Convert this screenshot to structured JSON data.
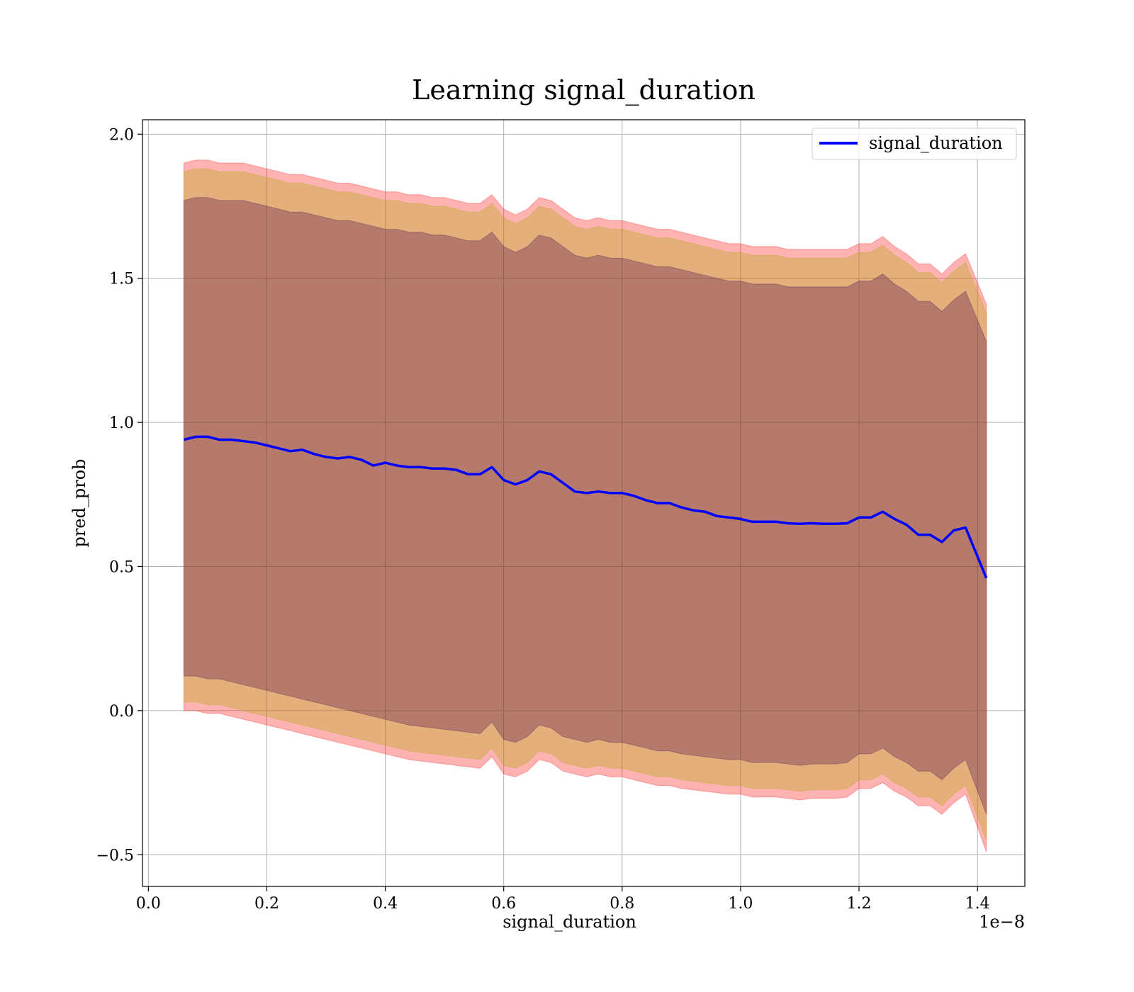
{
  "chart_data": {
    "type": "line",
    "title": "Learning signal_duration",
    "xlabel": "signal_duration",
    "ylabel": "pred_prob",
    "x_offset_label": "1e−8",
    "xlim": [
      -0.01,
      1.48
    ],
    "ylim": [
      -0.61,
      2.05
    ],
    "x_ticks": [
      0.0,
      0.2,
      0.4,
      0.6,
      0.8,
      1.0,
      1.2,
      1.4
    ],
    "x_tick_labels": [
      "0.0",
      "0.2",
      "0.4",
      "0.6",
      "0.8",
      "1.0",
      "1.2",
      "1.4"
    ],
    "y_ticks": [
      -0.5,
      0.0,
      0.5,
      1.0,
      1.5,
      2.0
    ],
    "y_tick_labels": [
      "−0.5",
      "0.0",
      "0.5",
      "1.0",
      "1.5",
      "2.0"
    ],
    "grid": true,
    "legend_position": "top-right",
    "x": [
      0.06,
      0.08,
      0.1,
      0.12,
      0.14,
      0.16,
      0.18,
      0.2,
      0.22,
      0.24,
      0.26,
      0.28,
      0.3,
      0.32,
      0.34,
      0.36,
      0.38,
      0.4,
      0.42,
      0.44,
      0.46,
      0.48,
      0.5,
      0.52,
      0.54,
      0.56,
      0.58,
      0.6,
      0.62,
      0.64,
      0.66,
      0.68,
      0.7,
      0.72,
      0.74,
      0.76,
      0.78,
      0.8,
      0.82,
      0.84,
      0.86,
      0.88,
      0.9,
      0.92,
      0.94,
      0.96,
      0.98,
      1.0,
      1.02,
      1.04,
      1.06,
      1.08,
      1.1,
      1.12,
      1.14,
      1.16,
      1.18,
      1.2,
      1.22,
      1.24,
      1.26,
      1.28,
      1.3,
      1.32,
      1.34,
      1.36,
      1.38,
      1.415
    ],
    "series": [
      {
        "name": "signal_duration",
        "color": "#0000ff",
        "values": [
          0.94,
          0.95,
          0.95,
          0.94,
          0.94,
          0.935,
          0.93,
          0.92,
          0.91,
          0.9,
          0.905,
          0.89,
          0.88,
          0.875,
          0.88,
          0.87,
          0.85,
          0.86,
          0.85,
          0.845,
          0.845,
          0.84,
          0.84,
          0.835,
          0.82,
          0.82,
          0.845,
          0.8,
          0.785,
          0.8,
          0.83,
          0.82,
          0.79,
          0.76,
          0.755,
          0.76,
          0.755,
          0.755,
          0.745,
          0.73,
          0.72,
          0.72,
          0.705,
          0.695,
          0.69,
          0.675,
          0.67,
          0.665,
          0.655,
          0.655,
          0.655,
          0.65,
          0.648,
          0.65,
          0.648,
          0.648,
          0.65,
          0.67,
          0.67,
          0.69,
          0.665,
          0.645,
          0.61,
          0.61,
          0.585,
          0.625,
          0.635,
          0.46
        ]
      }
    ],
    "bands": [
      {
        "color": "#ff0000",
        "opacity": 0.3,
        "lower": [
          0.0,
          0.0,
          -0.01,
          -0.01,
          -0.02,
          -0.03,
          -0.04,
          -0.05,
          -0.06,
          -0.07,
          -0.08,
          -0.09,
          -0.1,
          -0.11,
          -0.12,
          -0.13,
          -0.14,
          -0.15,
          -0.16,
          -0.17,
          -0.175,
          -0.18,
          -0.185,
          -0.19,
          -0.195,
          -0.2,
          -0.16,
          -0.22,
          -0.23,
          -0.21,
          -0.17,
          -0.18,
          -0.21,
          -0.22,
          -0.23,
          -0.22,
          -0.23,
          -0.23,
          -0.24,
          -0.25,
          -0.26,
          -0.26,
          -0.27,
          -0.275,
          -0.28,
          -0.285,
          -0.29,
          -0.29,
          -0.3,
          -0.3,
          -0.3,
          -0.305,
          -0.31,
          -0.305,
          -0.305,
          -0.305,
          -0.3,
          -0.27,
          -0.27,
          -0.25,
          -0.28,
          -0.3,
          -0.33,
          -0.33,
          -0.36,
          -0.32,
          -0.29,
          -0.49
        ],
        "upper": [
          1.9,
          1.91,
          1.91,
          1.9,
          1.9,
          1.9,
          1.89,
          1.88,
          1.87,
          1.86,
          1.86,
          1.85,
          1.84,
          1.83,
          1.83,
          1.82,
          1.81,
          1.8,
          1.8,
          1.79,
          1.79,
          1.78,
          1.78,
          1.77,
          1.76,
          1.76,
          1.79,
          1.74,
          1.72,
          1.74,
          1.78,
          1.77,
          1.74,
          1.71,
          1.7,
          1.71,
          1.7,
          1.7,
          1.69,
          1.68,
          1.67,
          1.67,
          1.66,
          1.65,
          1.64,
          1.63,
          1.62,
          1.62,
          1.61,
          1.61,
          1.61,
          1.6,
          1.6,
          1.6,
          1.6,
          1.6,
          1.6,
          1.62,
          1.62,
          1.645,
          1.61,
          1.585,
          1.55,
          1.55,
          1.515,
          1.555,
          1.585,
          1.41
        ]
      },
      {
        "color": "#aaaa00",
        "opacity": 0.3,
        "lower": [
          0.03,
          0.03,
          0.02,
          0.02,
          0.01,
          0.0,
          -0.01,
          -0.02,
          -0.03,
          -0.04,
          -0.05,
          -0.06,
          -0.07,
          -0.08,
          -0.09,
          -0.1,
          -0.11,
          -0.12,
          -0.13,
          -0.14,
          -0.145,
          -0.15,
          -0.155,
          -0.16,
          -0.165,
          -0.17,
          -0.13,
          -0.19,
          -0.2,
          -0.18,
          -0.14,
          -0.15,
          -0.18,
          -0.19,
          -0.2,
          -0.19,
          -0.2,
          -0.2,
          -0.21,
          -0.22,
          -0.23,
          -0.23,
          -0.24,
          -0.245,
          -0.25,
          -0.255,
          -0.26,
          -0.26,
          -0.27,
          -0.27,
          -0.27,
          -0.275,
          -0.28,
          -0.275,
          -0.275,
          -0.275,
          -0.27,
          -0.24,
          -0.24,
          -0.22,
          -0.25,
          -0.27,
          -0.3,
          -0.3,
          -0.33,
          -0.29,
          -0.26,
          -0.45
        ],
        "upper": [
          1.87,
          1.88,
          1.88,
          1.87,
          1.87,
          1.87,
          1.86,
          1.85,
          1.84,
          1.83,
          1.83,
          1.82,
          1.81,
          1.8,
          1.8,
          1.79,
          1.78,
          1.77,
          1.77,
          1.76,
          1.76,
          1.75,
          1.75,
          1.74,
          1.73,
          1.73,
          1.76,
          1.71,
          1.69,
          1.71,
          1.75,
          1.74,
          1.71,
          1.68,
          1.67,
          1.68,
          1.67,
          1.67,
          1.66,
          1.65,
          1.64,
          1.64,
          1.63,
          1.62,
          1.61,
          1.6,
          1.59,
          1.59,
          1.58,
          1.58,
          1.58,
          1.57,
          1.57,
          1.57,
          1.57,
          1.57,
          1.57,
          1.59,
          1.59,
          1.615,
          1.58,
          1.555,
          1.52,
          1.52,
          1.485,
          1.525,
          1.555,
          1.38
        ]
      },
      {
        "color": "#440044",
        "opacity": 0.3,
        "lower": [
          0.12,
          0.12,
          0.11,
          0.11,
          0.1,
          0.09,
          0.08,
          0.07,
          0.06,
          0.05,
          0.04,
          0.03,
          0.02,
          0.01,
          0.0,
          -0.01,
          -0.02,
          -0.03,
          -0.04,
          -0.05,
          -0.055,
          -0.06,
          -0.065,
          -0.07,
          -0.075,
          -0.08,
          -0.04,
          -0.1,
          -0.11,
          -0.09,
          -0.05,
          -0.06,
          -0.09,
          -0.1,
          -0.11,
          -0.1,
          -0.11,
          -0.11,
          -0.12,
          -0.13,
          -0.14,
          -0.14,
          -0.15,
          -0.155,
          -0.16,
          -0.165,
          -0.17,
          -0.17,
          -0.18,
          -0.18,
          -0.18,
          -0.185,
          -0.19,
          -0.185,
          -0.185,
          -0.185,
          -0.18,
          -0.15,
          -0.15,
          -0.13,
          -0.16,
          -0.18,
          -0.21,
          -0.21,
          -0.24,
          -0.2,
          -0.17,
          -0.36
        ],
        "upper": [
          1.77,
          1.78,
          1.78,
          1.77,
          1.77,
          1.77,
          1.76,
          1.75,
          1.74,
          1.73,
          1.73,
          1.72,
          1.71,
          1.7,
          1.7,
          1.69,
          1.68,
          1.67,
          1.67,
          1.66,
          1.66,
          1.65,
          1.65,
          1.64,
          1.63,
          1.63,
          1.66,
          1.61,
          1.59,
          1.61,
          1.65,
          1.64,
          1.61,
          1.58,
          1.57,
          1.58,
          1.57,
          1.57,
          1.56,
          1.55,
          1.54,
          1.54,
          1.53,
          1.52,
          1.51,
          1.5,
          1.49,
          1.49,
          1.48,
          1.48,
          1.48,
          1.47,
          1.47,
          1.47,
          1.47,
          1.47,
          1.47,
          1.49,
          1.49,
          1.515,
          1.48,
          1.455,
          1.42,
          1.42,
          1.385,
          1.425,
          1.455,
          1.28
        ]
      }
    ]
  }
}
